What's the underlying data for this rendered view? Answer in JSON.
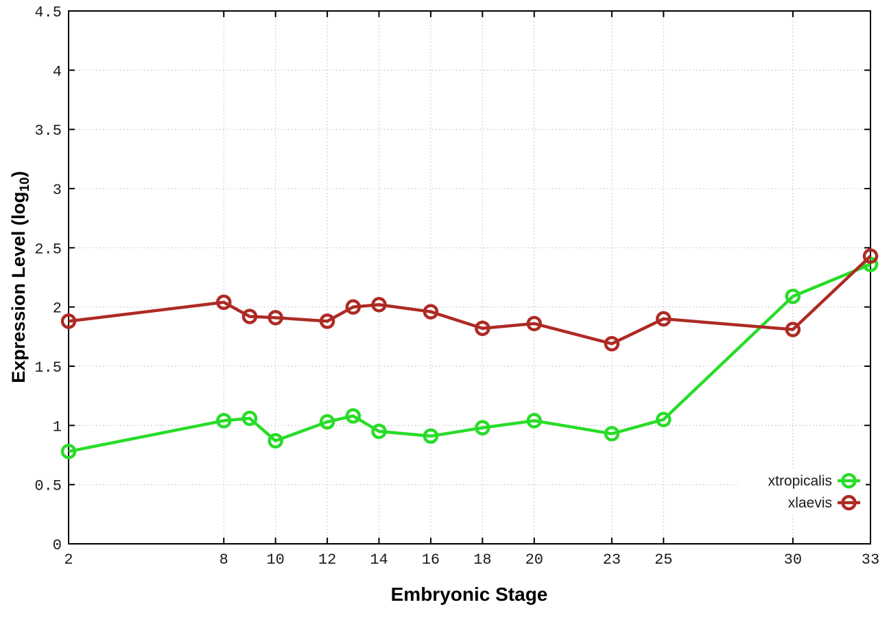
{
  "chart_data": {
    "type": "line",
    "title": "",
    "xlabel": "Embryonic Stage",
    "ylabel": "Expression Level (log10)",
    "ylabel_parts": {
      "main": "Expression Level (log",
      "sub": "10",
      "end": ")"
    },
    "x": [
      2,
      8,
      9,
      10,
      12,
      13,
      14,
      16,
      18,
      20,
      23,
      25,
      30,
      33
    ],
    "series": [
      {
        "name": "xtropicalis",
        "color": "#28dc28",
        "values": [
          0.78,
          1.04,
          1.06,
          0.87,
          1.03,
          1.08,
          0.95,
          0.91,
          0.98,
          1.04,
          0.93,
          1.05,
          2.09,
          2.36
        ]
      },
      {
        "name": "xlaevis",
        "color": "#ae2a24",
        "values": [
          1.88,
          2.04,
          1.92,
          1.91,
          1.88,
          2.0,
          2.02,
          1.96,
          1.82,
          1.86,
          1.69,
          1.9,
          1.81,
          2.43
        ]
      }
    ],
    "xlim": [
      2,
      33
    ],
    "ylim": [
      0,
      4.5
    ],
    "xticks": [
      2,
      8,
      10,
      12,
      14,
      16,
      18,
      20,
      23,
      25,
      30,
      33
    ],
    "xtick_labels": [
      "2",
      "8",
      "10",
      "12",
      "14",
      "16",
      "18",
      "20",
      "23",
      "25",
      "30",
      "33"
    ],
    "yticks": [
      0,
      0.5,
      1,
      1.5,
      2,
      2.5,
      3,
      3.5,
      4,
      4.5
    ],
    "ytick_labels": [
      "0",
      "0.5",
      "1",
      "1.5",
      "2",
      "2.5",
      "3",
      "3.5",
      "4",
      "4.5"
    ],
    "grid": "dotted",
    "legend": {
      "position": "bottom-right",
      "entries": [
        "xtropicalis",
        "xlaevis"
      ]
    },
    "colors": {
      "grid": "#c9c9c9",
      "axis": "#000000",
      "tick_text": "#1a1a1a",
      "background": "#ffffff"
    }
  }
}
